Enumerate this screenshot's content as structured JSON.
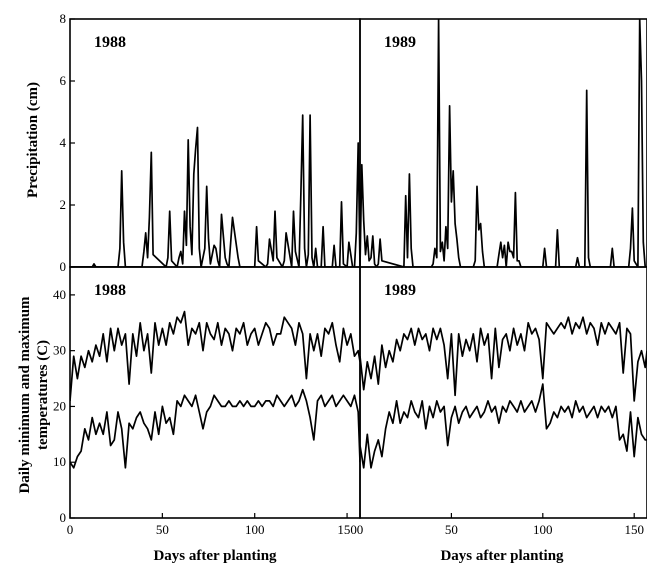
{
  "chart_data": [
    {
      "type": "line",
      "panel": "top-left",
      "title": "1988",
      "ylabel": "Precipitation (cm)",
      "xlim": [
        0,
        157
      ],
      "ylim": [
        0,
        8
      ],
      "yticks": [
        0,
        2,
        4,
        6,
        8
      ],
      "series": [
        {
          "x": [
            0,
            12,
            13,
            14,
            26,
            27,
            28,
            29,
            30,
            39,
            40,
            41,
            42,
            43,
            44,
            45,
            52,
            53,
            54,
            55,
            58,
            59,
            60,
            61,
            62,
            63,
            64,
            65,
            66,
            67,
            68,
            69,
            70,
            71,
            73,
            74,
            75,
            76,
            78,
            79,
            80,
            81,
            82,
            84,
            85,
            86,
            88,
            91,
            92,
            93,
            100,
            101,
            102,
            106,
            107,
            108,
            110,
            111,
            112,
            115,
            116,
            117,
            120,
            121,
            122,
            124,
            125,
            126,
            127,
            128,
            129,
            130,
            131,
            132,
            133,
            134,
            136,
            137,
            138,
            142,
            143,
            144,
            146,
            147,
            148,
            150,
            151,
            152,
            153,
            154,
            155,
            156,
            157
          ],
          "values": [
            0,
            0,
            0.1,
            0,
            0,
            0.6,
            3.1,
            0.8,
            0,
            0,
            0.5,
            1.1,
            0.3,
            1.6,
            3.7,
            0.4,
            0,
            0.3,
            1.8,
            0.2,
            0,
            0.3,
            0.5,
            0.1,
            1.8,
            0.7,
            4.1,
            1.3,
            0.4,
            3.0,
            3.8,
            4.5,
            0.6,
            0,
            0.6,
            2.6,
            0.9,
            0.1,
            0.7,
            0.6,
            0.2,
            0,
            1.7,
            0.3,
            0.1,
            0,
            1.6,
            0.3,
            0,
            0,
            0,
            1.3,
            0.2,
            0,
            0.1,
            0.9,
            0.2,
            1.8,
            0.3,
            0,
            0.2,
            1.1,
            0,
            1.8,
            0.5,
            0,
            2.4,
            4.9,
            0.6,
            0,
            0.4,
            4.9,
            0.3,
            0,
            0.6,
            0,
            0,
            1.3,
            0,
            0,
            0.7,
            0,
            0,
            2.1,
            0.1,
            0,
            0.8,
            0.4,
            0,
            0,
            1.1,
            4.0,
            0
          ]
        }
      ]
    },
    {
      "type": "line",
      "panel": "top-right",
      "title": "1989",
      "ylabel": "",
      "xlim": [
        0,
        157
      ],
      "ylim": [
        0,
        8
      ],
      "yticks": [],
      "series": [
        {
          "x": [
            0,
            1,
            2,
            3,
            4,
            5,
            6,
            7,
            8,
            9,
            10,
            11,
            12,
            24,
            25,
            26,
            27,
            28,
            29,
            39,
            40,
            41,
            42,
            43,
            44,
            45,
            46,
            47,
            48,
            49,
            50,
            51,
            52,
            53,
            54,
            55,
            62,
            63,
            64,
            65,
            66,
            67,
            68,
            75,
            76,
            77,
            78,
            79,
            80,
            81,
            82,
            83,
            84,
            85,
            86,
            87,
            88,
            100,
            101,
            102,
            107,
            108,
            109,
            118,
            119,
            120,
            123,
            124,
            125,
            126,
            137,
            138,
            139,
            147,
            148,
            149,
            150,
            152,
            153,
            154,
            155,
            156,
            157
          ],
          "values": [
            0,
            3.3,
            1.5,
            0.4,
            1.0,
            0.2,
            0.3,
            1.0,
            0.1,
            0,
            0.1,
            0.9,
            0.2,
            0,
            2.3,
            0.3,
            3.0,
            0.6,
            0,
            0,
            0.1,
            0.6,
            0.3,
            8.0,
            0.5,
            0.8,
            0.2,
            1.3,
            0.6,
            5.2,
            2.1,
            3.1,
            1.4,
            0.9,
            0.3,
            0,
            0,
            0.2,
            2.6,
            1.2,
            1.4,
            0.5,
            0,
            0,
            0.4,
            0.8,
            0.3,
            0.7,
            0,
            0.8,
            0.5,
            0.5,
            0.3,
            2.4,
            0.2,
            0.2,
            0,
            0,
            0.6,
            0,
            0,
            1.2,
            0,
            0,
            0.3,
            0,
            0,
            5.7,
            0.3,
            0,
            0,
            0.6,
            0,
            0,
            0.6,
            1.9,
            0.2,
            0,
            8.0,
            6.0,
            0.8,
            0,
            0
          ]
        }
      ]
    },
    {
      "type": "line",
      "panel": "bottom-left",
      "title": "1988",
      "ylabel": "Daily minimum and maximum temperatures (C)",
      "xlabel": "Days after planting",
      "xlim": [
        0,
        157
      ],
      "ylim": [
        0,
        45
      ],
      "xticks": [
        0,
        50,
        100,
        150
      ],
      "yticks": [
        0,
        10,
        20,
        30,
        40
      ],
      "series": [
        {
          "x": [
            0,
            2,
            4,
            6,
            8,
            10,
            12,
            14,
            16,
            18,
            20,
            22,
            24,
            26,
            28,
            30,
            32,
            34,
            36,
            38,
            40,
            42,
            44,
            46,
            48,
            50,
            52,
            54,
            56,
            58,
            60,
            62,
            64,
            66,
            68,
            70,
            72,
            74,
            76,
            78,
            80,
            82,
            84,
            86,
            88,
            90,
            92,
            94,
            96,
            98,
            100,
            102,
            104,
            106,
            108,
            110,
            112,
            114,
            116,
            118,
            120,
            122,
            124,
            126,
            128,
            130,
            132,
            134,
            136,
            138,
            140,
            142,
            144,
            146,
            148,
            150,
            152,
            154,
            156,
            157
          ],
          "values": [
            21,
            29,
            25,
            29,
            27,
            30,
            28,
            31,
            29,
            33,
            28,
            34,
            30,
            34,
            31,
            33,
            24,
            33,
            29,
            35,
            30,
            33,
            26,
            35,
            31,
            34,
            31,
            35,
            33,
            36,
            35,
            37,
            31,
            34,
            33,
            35,
            30,
            35,
            33,
            32,
            35,
            31,
            34,
            33,
            30,
            34,
            33,
            35,
            31,
            33,
            34,
            31,
            33,
            35,
            34,
            31,
            33,
            33,
            36,
            35,
            34,
            31,
            35,
            33,
            25,
            33,
            30,
            33,
            29,
            34,
            33,
            35,
            31,
            28,
            34,
            31,
            33,
            29,
            30,
            28
          ]
        },
        {
          "x": [
            0,
            2,
            4,
            6,
            8,
            10,
            12,
            14,
            16,
            18,
            20,
            22,
            24,
            26,
            28,
            30,
            32,
            34,
            36,
            38,
            40,
            42,
            44,
            46,
            48,
            50,
            52,
            54,
            56,
            58,
            60,
            62,
            64,
            66,
            68,
            70,
            72,
            74,
            76,
            78,
            80,
            82,
            84,
            86,
            88,
            90,
            92,
            94,
            96,
            98,
            100,
            102,
            104,
            106,
            108,
            110,
            112,
            114,
            116,
            118,
            120,
            122,
            124,
            126,
            128,
            130,
            132,
            134,
            136,
            138,
            140,
            142,
            144,
            146,
            148,
            150,
            152,
            154,
            156,
            157
          ],
          "values": [
            10,
            9,
            11,
            12,
            16,
            14,
            18,
            15,
            17,
            15,
            19,
            13,
            14,
            19,
            16,
            9,
            17,
            16,
            18,
            19,
            17,
            16,
            14,
            19,
            15,
            20,
            17,
            18,
            15,
            21,
            20,
            22,
            21,
            20,
            22,
            19,
            16,
            19,
            20,
            22,
            21,
            20,
            20,
            21,
            20,
            20,
            21,
            20,
            21,
            20,
            20,
            21,
            20,
            21,
            21,
            20,
            22,
            21,
            20,
            21,
            22,
            20,
            21,
            23,
            21,
            18,
            14,
            21,
            22,
            20,
            21,
            22,
            20,
            21,
            22,
            21,
            20,
            22,
            19,
            10
          ]
        }
      ]
    },
    {
      "type": "line",
      "panel": "bottom-right",
      "title": "1989",
      "ylabel": "",
      "xlabel": "Days after planting",
      "xlim": [
        0,
        157
      ],
      "ylim": [
        0,
        45
      ],
      "xticks": [
        0,
        50,
        100,
        150
      ],
      "yticks": [],
      "series": [
        {
          "x": [
            0,
            2,
            4,
            6,
            8,
            10,
            12,
            14,
            16,
            18,
            20,
            22,
            24,
            26,
            28,
            30,
            32,
            34,
            36,
            38,
            40,
            42,
            44,
            46,
            48,
            50,
            52,
            54,
            56,
            58,
            60,
            62,
            64,
            66,
            68,
            70,
            72,
            74,
            76,
            78,
            80,
            82,
            84,
            86,
            88,
            90,
            92,
            94,
            96,
            98,
            100,
            102,
            104,
            106,
            108,
            110,
            112,
            114,
            116,
            118,
            120,
            122,
            124,
            126,
            128,
            130,
            132,
            134,
            136,
            138,
            140,
            142,
            144,
            146,
            148,
            150,
            152,
            154,
            156,
            157
          ],
          "values": [
            29,
            23,
            28,
            25,
            29,
            24,
            31,
            27,
            30,
            28,
            32,
            30,
            33,
            32,
            34,
            31,
            34,
            32,
            33,
            30,
            34,
            32,
            34,
            31,
            25,
            33,
            22,
            33,
            29,
            32,
            30,
            33,
            28,
            34,
            31,
            33,
            25,
            34,
            27,
            32,
            33,
            30,
            34,
            31,
            33,
            30,
            35,
            33,
            34,
            32,
            25,
            35,
            34,
            33,
            34,
            35,
            34,
            36,
            33,
            35,
            34,
            36,
            33,
            35,
            34,
            31,
            35,
            33,
            35,
            34,
            33,
            35,
            26,
            34,
            33,
            21,
            28,
            30,
            27,
            30
          ]
        },
        {
          "x": [
            0,
            2,
            4,
            6,
            8,
            10,
            12,
            14,
            16,
            18,
            20,
            22,
            24,
            26,
            28,
            30,
            32,
            34,
            36,
            38,
            40,
            42,
            44,
            46,
            48,
            50,
            52,
            54,
            56,
            58,
            60,
            62,
            64,
            66,
            68,
            70,
            72,
            74,
            76,
            78,
            80,
            82,
            84,
            86,
            88,
            90,
            92,
            94,
            96,
            98,
            100,
            102,
            104,
            106,
            108,
            110,
            112,
            114,
            116,
            118,
            120,
            122,
            124,
            126,
            128,
            130,
            132,
            134,
            136,
            138,
            140,
            142,
            144,
            146,
            148,
            150,
            152,
            154,
            156,
            157
          ],
          "values": [
            13,
            9,
            15,
            9,
            12,
            14,
            11,
            16,
            19,
            17,
            21,
            17,
            19,
            18,
            21,
            19,
            18,
            21,
            16,
            20,
            18,
            21,
            19,
            20,
            13,
            18,
            20,
            17,
            19,
            20,
            18,
            19,
            20,
            18,
            19,
            21,
            19,
            20,
            17,
            20,
            19,
            21,
            20,
            19,
            21,
            19,
            20,
            21,
            19,
            21,
            24,
            16,
            17,
            19,
            18,
            20,
            19,
            20,
            18,
            21,
            19,
            20,
            18,
            19,
            20,
            18,
            20,
            19,
            20,
            18,
            20,
            14,
            15,
            12,
            19,
            11,
            18,
            15,
            14,
            14
          ]
        }
      ]
    }
  ]
}
